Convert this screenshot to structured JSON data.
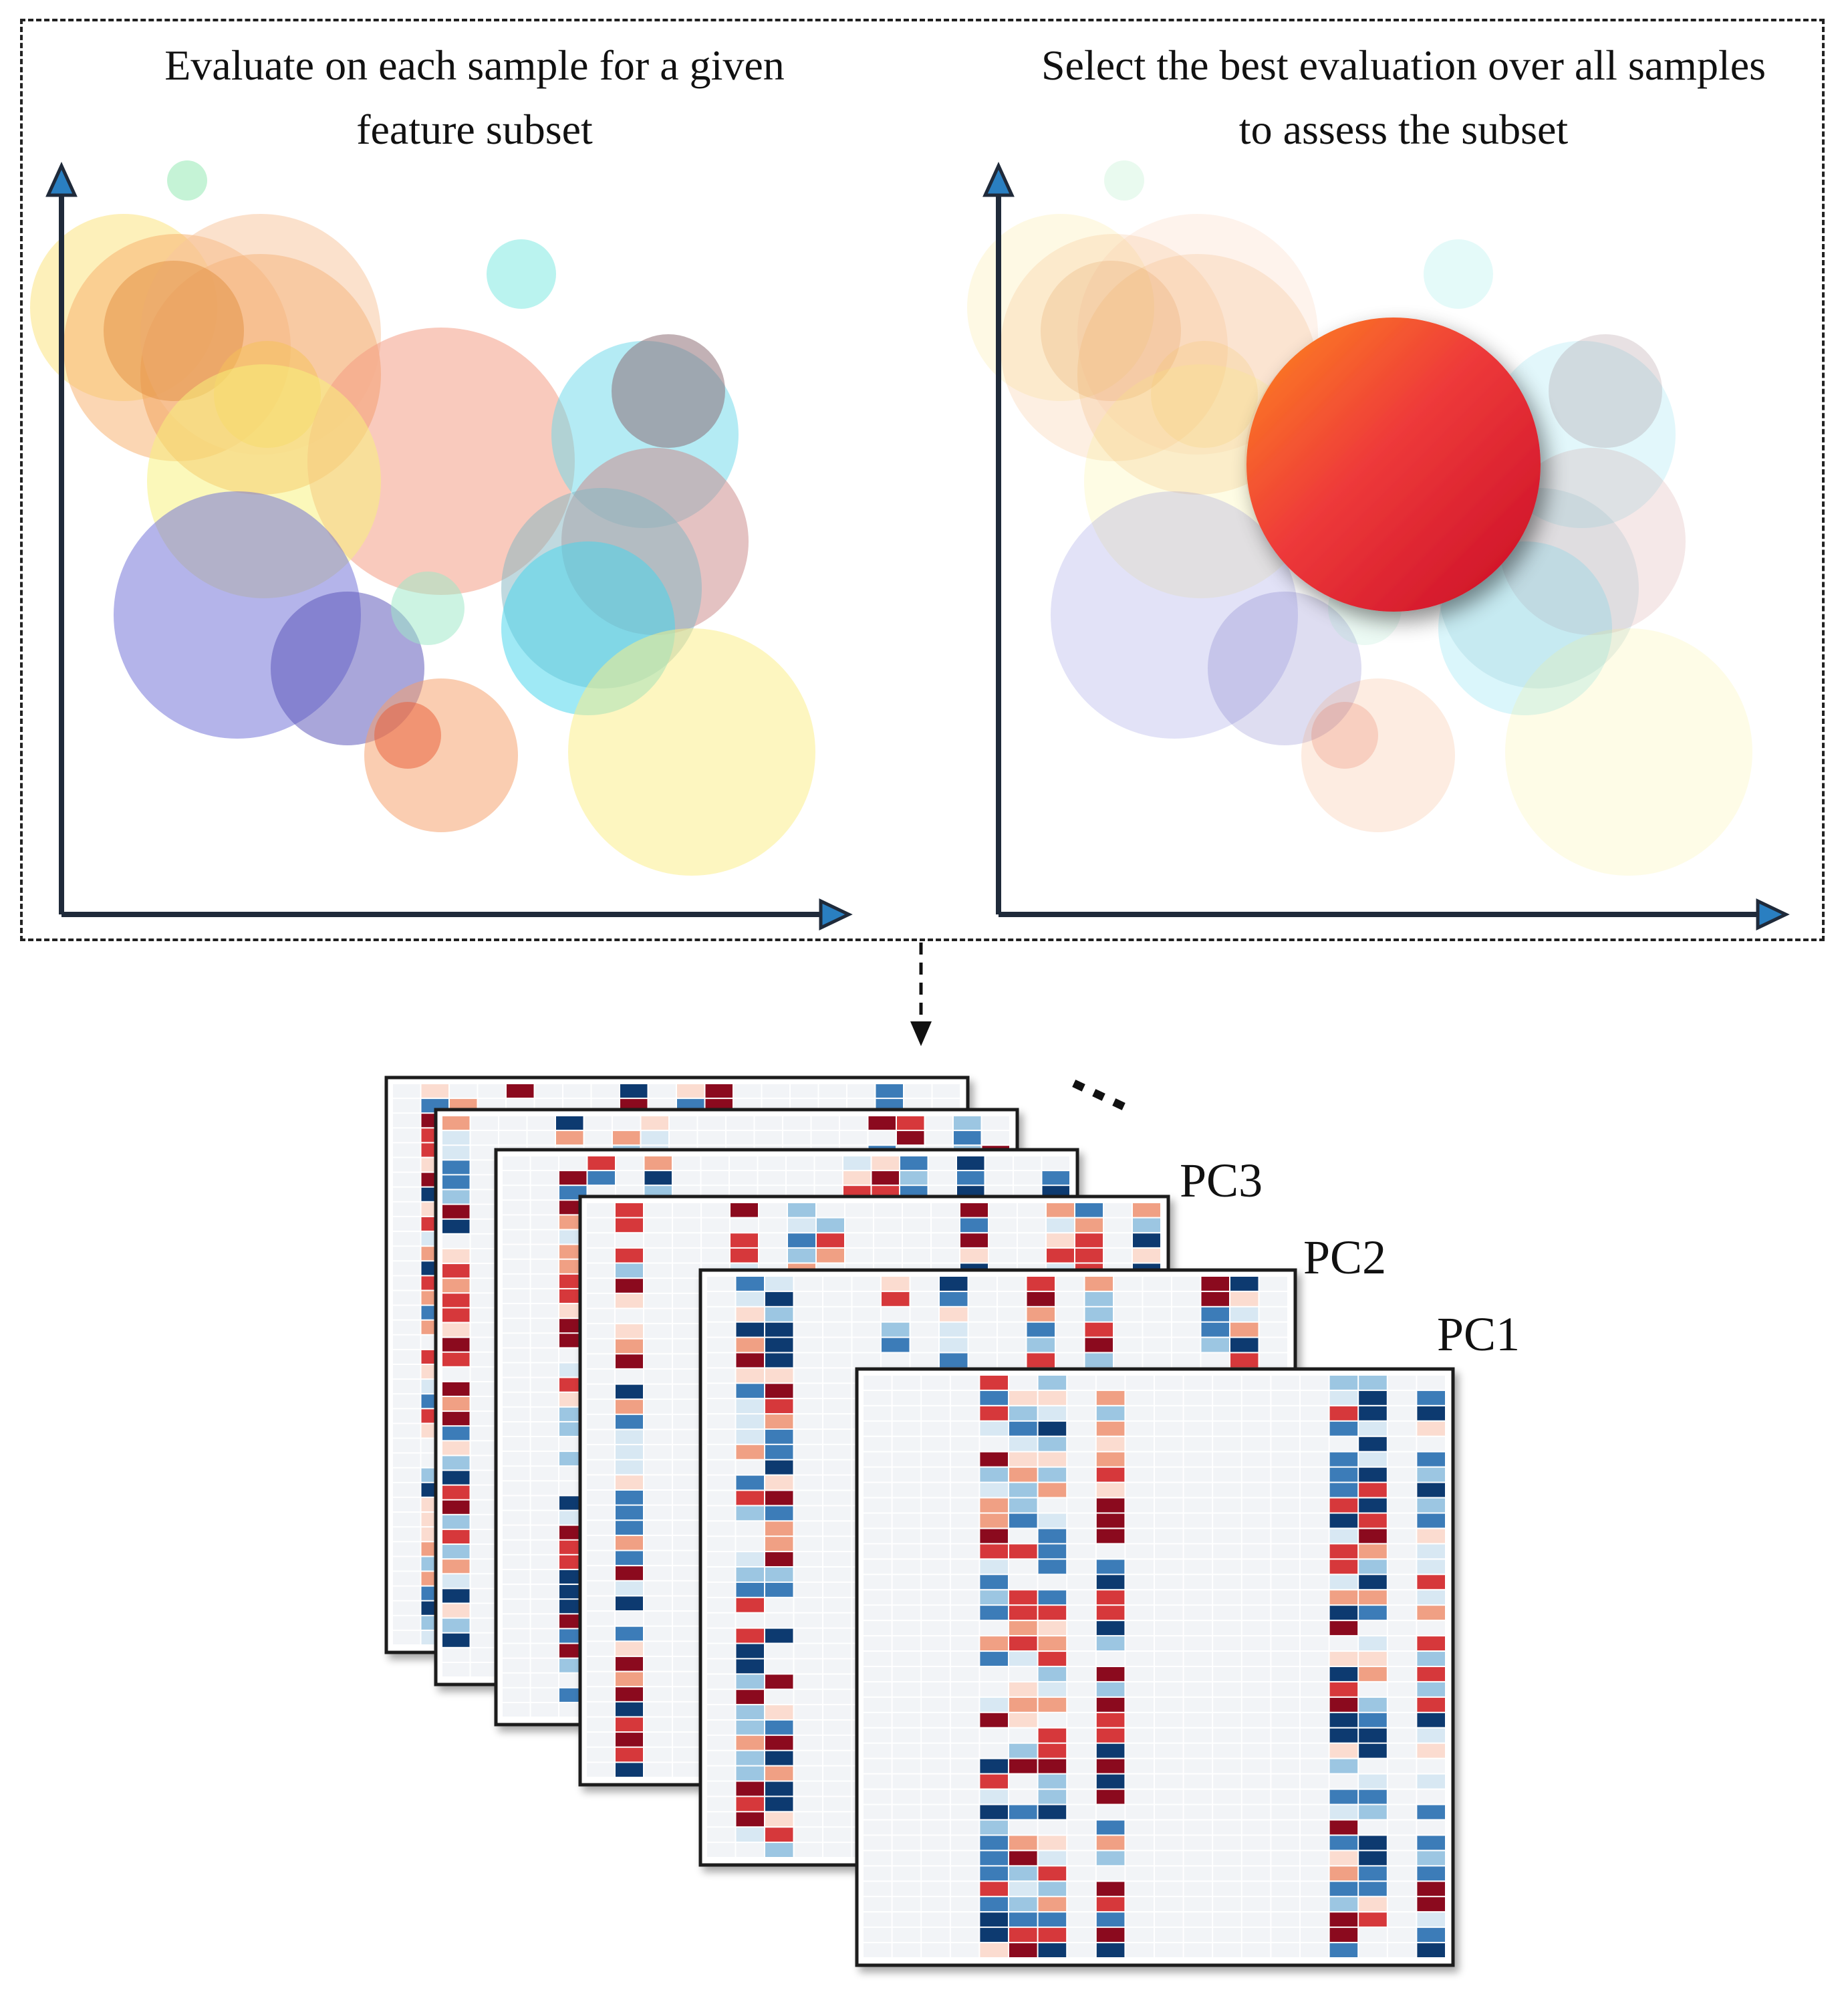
{
  "panels": {
    "left_title": "Evaluate on each sample for a given feature subset",
    "right_title": "Select the best evaluation over all samples to assess the subset"
  },
  "stack_labels": [
    "PC3",
    "PC2",
    "PC1"
  ],
  "ellipsis": "...",
  "colors": {
    "axis": "#1f2a3a",
    "axis_head": "#2a7fc1",
    "red_dark": "#8b0a1e",
    "red": "#d6383b",
    "red_light": "#f0a084",
    "red_pale": "#fbdcd0",
    "blue_dark": "#0d3a70",
    "blue": "#3c7cb8",
    "blue_light": "#9cc6e2",
    "blue_pale": "#d8e8f3",
    "cell_bg": "#f2f4f7",
    "best_top": "#ff8a1e",
    "best_bottom": "#d6102c"
  }
}
